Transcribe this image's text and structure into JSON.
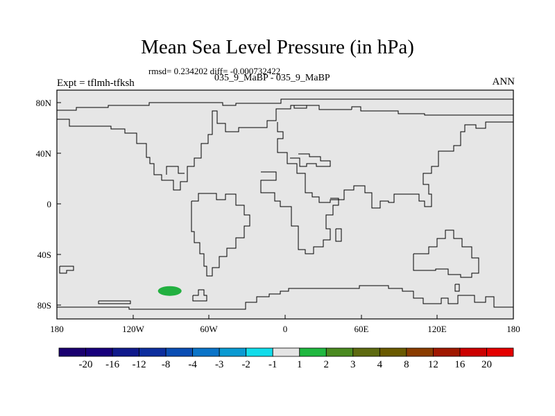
{
  "title": "Mean Sea Level Pressure (in hPa)",
  "stats": "rmsd= 0.234202 diff= -0.000732422",
  "subtitle": "035_9_MaBP - 035_9_MaBP",
  "left_label": "Expt = tflmh-tfksh",
  "right_label": "ANN",
  "lat_labels": [
    "80N",
    "40N",
    "0",
    "40S",
    "80S"
  ],
  "lon_labels": [
    "180",
    "120W",
    "60W",
    "0",
    "60E",
    "120E",
    "180"
  ],
  "colorbar": {
    "labels": [
      "-20",
      "-16",
      "-12",
      "-8",
      "-4",
      "-3",
      "-2",
      "-1",
      "1",
      "2",
      "3",
      "4",
      "8",
      "12",
      "16",
      "20"
    ],
    "colors": [
      "#1a0070",
      "#17007c",
      "#101a8c",
      "#0d2e9e",
      "#0a4eb4",
      "#0a74c8",
      "#0a9ad2",
      "#12dcea",
      "#e4e4e4",
      "#20b840",
      "#4a8a20",
      "#5e6a10",
      "#6a5a00",
      "#8a3c00",
      "#a01800",
      "#cc0000",
      "#e40000"
    ]
  },
  "map": {
    "background_color": "#e6e6e6",
    "anomaly_color": "#22b040",
    "anomaly_lon": -91,
    "anomaly_lat": -68
  }
}
